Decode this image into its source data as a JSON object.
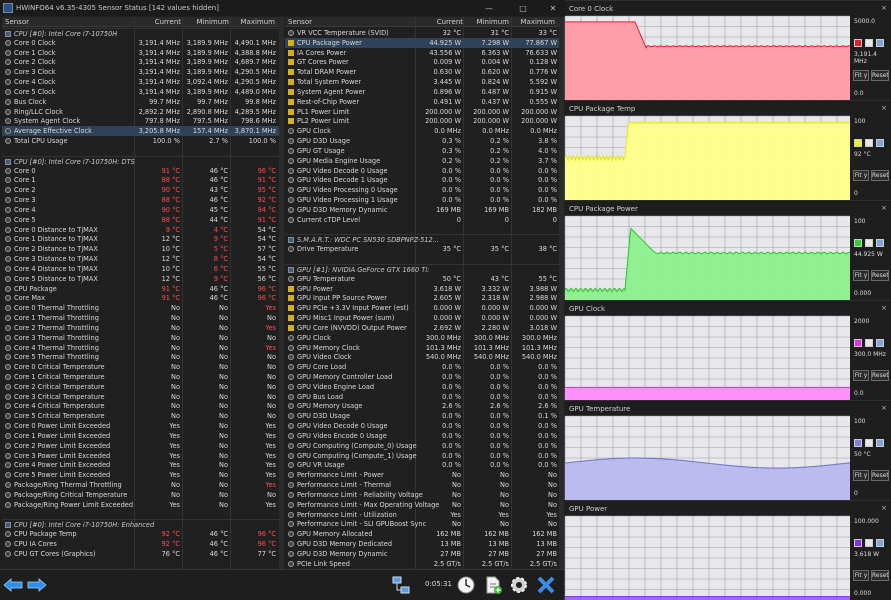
{
  "window": {
    "title": "HWiNFO64 v6.35-4305 Sensor Status [142 values hidden]"
  },
  "columns": {
    "sensor": "Sensor",
    "current": "Current",
    "minimum": "Minimum",
    "maximum": "Maximum"
  },
  "left_rows": [
    {
      "n": "CPU [#0]: Intel Core i7-10750H",
      "group": true
    },
    {
      "n": "Core 0 Clock",
      "c": "3,191.4 MHz",
      "mi": "3,189.9 MHz",
      "ma": "4,490.1 MHz"
    },
    {
      "n": "Core 1 Clock",
      "c": "3,191.4 MHz",
      "mi": "3,189.9 MHz",
      "ma": "4,388.8 MHz"
    },
    {
      "n": "Core 2 Clock",
      "c": "3,191.4 MHz",
      "mi": "3,189.9 MHz",
      "ma": "4,689.7 MHz"
    },
    {
      "n": "Core 3 Clock",
      "c": "3,191.4 MHz",
      "mi": "3,189.9 MHz",
      "ma": "4,290.5 MHz"
    },
    {
      "n": "Core 4 Clock",
      "c": "3,191.4 MHz",
      "mi": "3,092.4 MHz",
      "ma": "4,290.5 MHz"
    },
    {
      "n": "Core 5 Clock",
      "c": "3,191.4 MHz",
      "mi": "3,189.9 MHz",
      "ma": "4,489.0 MHz"
    },
    {
      "n": "Bus Clock",
      "c": "99.7 MHz",
      "mi": "99.7 MHz",
      "ma": "99.8 MHz"
    },
    {
      "n": "Ring/LLC Clock",
      "c": "2,892.2 MHz",
      "mi": "2,890.8 MHz",
      "ma": "4,289.5 MHz"
    },
    {
      "n": "System Agent Clock",
      "c": "797.8 MHz",
      "mi": "797.5 MHz",
      "ma": "798.6 MHz"
    },
    {
      "n": "Average Effective Clock",
      "c": "3,205.8 MHz",
      "mi": "157.4 MHz",
      "ma": "3,870.1 MHz",
      "sel": true
    },
    {
      "n": "Total CPU Usage",
      "c": "100.0 %",
      "mi": "2.7 %",
      "ma": "100.0 %"
    },
    {
      "n": "",
      "blank": true
    },
    {
      "n": "CPU [#0]: Intel Core i7-10750H: DTS",
      "group": true
    },
    {
      "n": "Core 0",
      "c": "91 °C",
      "mi": "46 °C",
      "ma": "96 °C",
      "rc": true,
      "rma": true
    },
    {
      "n": "Core 1",
      "c": "88 °C",
      "mi": "46 °C",
      "ma": "91 °C",
      "rc": true,
      "rma": true
    },
    {
      "n": "Core 2",
      "c": "90 °C",
      "mi": "43 °C",
      "ma": "95 °C",
      "rc": true,
      "rma": true
    },
    {
      "n": "Core 3",
      "c": "88 °C",
      "mi": "46 °C",
      "ma": "92 °C",
      "rc": true,
      "rma": true
    },
    {
      "n": "Core 4",
      "c": "90 °C",
      "mi": "45 °C",
      "ma": "94 °C",
      "rc": true,
      "rma": true
    },
    {
      "n": "Core 5",
      "c": "88 °C",
      "mi": "44 °C",
      "ma": "91 °C",
      "rc": true,
      "rma": true
    },
    {
      "n": "Core 0 Distance to TjMAX",
      "c": "9 °C",
      "mi": "4 °C",
      "ma": "54 °C",
      "rc": true,
      "rmi": true
    },
    {
      "n": "Core 1 Distance to TjMAX",
      "c": "12 °C",
      "mi": "9 °C",
      "ma": "54 °C",
      "rmi": true
    },
    {
      "n": "Core 2 Distance to TjMAX",
      "c": "10 °C",
      "mi": "5 °C",
      "ma": "57 °C",
      "rmi": true
    },
    {
      "n": "Core 3 Distance to TjMAX",
      "c": "12 °C",
      "mi": "8 °C",
      "ma": "54 °C",
      "rmi": true
    },
    {
      "n": "Core 4 Distance to TjMAX",
      "c": "10 °C",
      "mi": "6 °C",
      "ma": "55 °C",
      "rmi": true
    },
    {
      "n": "Core 5 Distance to TjMAX",
      "c": "12 °C",
      "mi": "9 °C",
      "ma": "56 °C",
      "rmi": true
    },
    {
      "n": "CPU Package",
      "c": "91 °C",
      "mi": "46 °C",
      "ma": "96 °C",
      "rc": true,
      "rma": true
    },
    {
      "n": "Core Max",
      "c": "91 °C",
      "mi": "46 °C",
      "ma": "96 °C",
      "rc": true,
      "rma": true
    },
    {
      "n": "Core 0 Thermal Throttling",
      "c": "No",
      "mi": "No",
      "ma": "Yes",
      "rma": true
    },
    {
      "n": "Core 1 Thermal Throttling",
      "c": "No",
      "mi": "No",
      "ma": "No"
    },
    {
      "n": "Core 2 Thermal Throttling",
      "c": "No",
      "mi": "No",
      "ma": "Yes",
      "rma": true
    },
    {
      "n": "Core 3 Thermal Throttling",
      "c": "No",
      "mi": "No",
      "ma": "No"
    },
    {
      "n": "Core 4 Thermal Throttling",
      "c": "No",
      "mi": "No",
      "ma": "Yes",
      "rma": true
    },
    {
      "n": "Core 5 Thermal Throttling",
      "c": "No",
      "mi": "No",
      "ma": "No"
    },
    {
      "n": "Core 0 Critical Temperature",
      "c": "No",
      "mi": "No",
      "ma": "No"
    },
    {
      "n": "Core 1 Critical Temperature",
      "c": "No",
      "mi": "No",
      "ma": "No"
    },
    {
      "n": "Core 2 Critical Temperature",
      "c": "No",
      "mi": "No",
      "ma": "No"
    },
    {
      "n": "Core 3 Critical Temperature",
      "c": "No",
      "mi": "No",
      "ma": "No"
    },
    {
      "n": "Core 4 Critical Temperature",
      "c": "No",
      "mi": "No",
      "ma": "No"
    },
    {
      "n": "Core 5 Critical Temperature",
      "c": "No",
      "mi": "No",
      "ma": "No"
    },
    {
      "n": "Core 0 Power Limit Exceeded",
      "c": "Yes",
      "mi": "No",
      "ma": "Yes"
    },
    {
      "n": "Core 1 Power Limit Exceeded",
      "c": "Yes",
      "mi": "No",
      "ma": "Yes"
    },
    {
      "n": "Core 2 Power Limit Exceeded",
      "c": "Yes",
      "mi": "No",
      "ma": "Yes"
    },
    {
      "n": "Core 3 Power Limit Exceeded",
      "c": "Yes",
      "mi": "No",
      "ma": "Yes"
    },
    {
      "n": "Core 4 Power Limit Exceeded",
      "c": "Yes",
      "mi": "No",
      "ma": "Yes"
    },
    {
      "n": "Core 5 Power Limit Exceeded",
      "c": "Yes",
      "mi": "No",
      "ma": "Yes"
    },
    {
      "n": "Package/Ring Thermal Throttling",
      "c": "No",
      "mi": "No",
      "ma": "Yes",
      "rma": true
    },
    {
      "n": "Package/Ring Critical Temperature",
      "c": "No",
      "mi": "No",
      "ma": "No"
    },
    {
      "n": "Package/Ring Power Limit Exceeded",
      "c": "Yes",
      "mi": "No",
      "ma": "Yes"
    },
    {
      "n": "",
      "blank": true
    },
    {
      "n": "CPU [#0]: Intel Core i7-10750H: Enhanced",
      "group": true
    },
    {
      "n": "CPU Package Temp",
      "c": "92 °C",
      "mi": "46 °C",
      "ma": "96 °C",
      "rc": true,
      "rma": true
    },
    {
      "n": "CPU IA Cores",
      "c": "92 °C",
      "mi": "46 °C",
      "ma": "96 °C",
      "rc": true,
      "rma": true
    },
    {
      "n": "CPU GT Cores (Graphics)",
      "c": "76 °C",
      "mi": "46 °C",
      "ma": "77 °C"
    }
  ],
  "right_rows": [
    {
      "n": "VR VCC Temperature (SVID)",
      "c": "32 °C",
      "mi": "31 °C",
      "ma": "33 °C"
    },
    {
      "n": "CPU Package Power",
      "c": "44.925 W",
      "mi": "7.298 W",
      "ma": "77.867 W",
      "sel": true,
      "pwr": true
    },
    {
      "n": "IA Cores Power",
      "c": "43.556 W",
      "mi": "6.363 W",
      "ma": "76.633 W",
      "pwr": true
    },
    {
      "n": "GT Cores Power",
      "c": "0.009 W",
      "mi": "0.004 W",
      "ma": "0.128 W",
      "pwr": true
    },
    {
      "n": "Total DRAM Power",
      "c": "0.630 W",
      "mi": "0.620 W",
      "ma": "0.776 W",
      "pwr": true
    },
    {
      "n": "Total System Power",
      "c": "3.445 W",
      "mi": "0.824 W",
      "ma": "5.592 W",
      "pwr": true
    },
    {
      "n": "System Agent Power",
      "c": "0.896 W",
      "mi": "0.487 W",
      "ma": "0.915 W",
      "pwr": true
    },
    {
      "n": "Rest-of-Chip Power",
      "c": "0.491 W",
      "mi": "0.437 W",
      "ma": "0.555 W",
      "pwr": true
    },
    {
      "n": "PL1 Power Limit",
      "c": "200.000 W",
      "mi": "200.000 W",
      "ma": "200.000 W",
      "pwr": true
    },
    {
      "n": "PL2 Power Limit",
      "c": "200.000 W",
      "mi": "200.000 W",
      "ma": "200.000 W",
      "pwr": true
    },
    {
      "n": "GPU Clock",
      "c": "0.0 MHz",
      "mi": "0.0 MHz",
      "ma": "0.0 MHz"
    },
    {
      "n": "GPU D3D Usage",
      "c": "0.3 %",
      "mi": "0.2 %",
      "ma": "3.8 %"
    },
    {
      "n": "GPU GT Usage",
      "c": "0.3 %",
      "mi": "0.2 %",
      "ma": "4.0 %"
    },
    {
      "n": "GPU Media Engine Usage",
      "c": "0.2 %",
      "mi": "0.2 %",
      "ma": "3.7 %"
    },
    {
      "n": "GPU Video Decode 0 Usage",
      "c": "0.0 %",
      "mi": "0.0 %",
      "ma": "0.0 %"
    },
    {
      "n": "GPU Video Decode 1 Usage",
      "c": "0.0 %",
      "mi": "0.0 %",
      "ma": "0.0 %"
    },
    {
      "n": "GPU Video Processing 0 Usage",
      "c": "0.0 %",
      "mi": "0.0 %",
      "ma": "0.0 %"
    },
    {
      "n": "GPU Video Processing 1 Usage",
      "c": "0.0 %",
      "mi": "0.0 %",
      "ma": "0.0 %"
    },
    {
      "n": "GPU D3D Memory Dynamic",
      "c": "169 MB",
      "mi": "169 MB",
      "ma": "182 MB"
    },
    {
      "n": "Current cTDP Level",
      "c": "0",
      "mi": "0",
      "ma": "0"
    },
    {
      "n": "",
      "blank": true
    },
    {
      "n": "S.M.A.R.T.: WDC PC SN530 SDBPNPZ-512...",
      "group": true
    },
    {
      "n": "Drive Temperature",
      "c": "35 °C",
      "mi": "35 °C",
      "ma": "38 °C"
    },
    {
      "n": "",
      "blank": true
    },
    {
      "n": "GPU [#1]: NVIDIA GeForce GTX 1660 Ti:",
      "group": true
    },
    {
      "n": "GPU Temperature",
      "c": "50 °C",
      "mi": "43 °C",
      "ma": "55 °C"
    },
    {
      "n": "GPU Power",
      "c": "3.618 W",
      "mi": "3.332 W",
      "ma": "3.988 W",
      "pwr": true
    },
    {
      "n": "GPU Input PP Source Power",
      "c": "2.605 W",
      "mi": "2.318 W",
      "ma": "2.988 W",
      "pwr": true
    },
    {
      "n": "GPU PCIe +3.3V Input Power (est)",
      "c": "0.000 W",
      "mi": "0.000 W",
      "ma": "0.000 W",
      "pwr": true
    },
    {
      "n": "GPU Misc1 Input Power (sum)",
      "c": "0.000 W",
      "mi": "0.000 W",
      "ma": "0.000 W",
      "pwr": true
    },
    {
      "n": "GPU Core (NVVDD) Output Power",
      "c": "2.692 W",
      "mi": "2.280 W",
      "ma": "3.018 W",
      "pwr": true
    },
    {
      "n": "GPU Clock",
      "c": "300.0 MHz",
      "mi": "300.0 MHz",
      "ma": "300.0 MHz"
    },
    {
      "n": "GPU Memory Clock",
      "c": "101.3 MHz",
      "mi": "101.3 MHz",
      "ma": "101.3 MHz"
    },
    {
      "n": "GPU Video Clock",
      "c": "540.0 MHz",
      "mi": "540.0 MHz",
      "ma": "540.0 MHz"
    },
    {
      "n": "GPU Core Load",
      "c": "0.0 %",
      "mi": "0.0 %",
      "ma": "0.0 %"
    },
    {
      "n": "GPU Memory Controller Load",
      "c": "0.0 %",
      "mi": "0.0 %",
      "ma": "0.0 %"
    },
    {
      "n": "GPU Video Engine Load",
      "c": "0.0 %",
      "mi": "0.0 %",
      "ma": "0.0 %"
    },
    {
      "n": "GPU Bus Load",
      "c": "0.0 %",
      "mi": "0.0 %",
      "ma": "0.0 %"
    },
    {
      "n": "GPU Memory Usage",
      "c": "2.6 %",
      "mi": "2.6 %",
      "ma": "2.6 %"
    },
    {
      "n": "GPU D3D Usage",
      "c": "0.0 %",
      "mi": "0.0 %",
      "ma": "0.1 %"
    },
    {
      "n": "GPU Video Decode 0 Usage",
      "c": "0.0 %",
      "mi": "0.0 %",
      "ma": "0.0 %"
    },
    {
      "n": "GPU Video Encode 0 Usage",
      "c": "0.0 %",
      "mi": "0.0 %",
      "ma": "0.0 %"
    },
    {
      "n": "GPU Computing (Compute_0) Usage",
      "c": "0.0 %",
      "mi": "0.0 %",
      "ma": "0.0 %"
    },
    {
      "n": "GPU Computing (Compute_1) Usage",
      "c": "0.0 %",
      "mi": "0.0 %",
      "ma": "0.0 %"
    },
    {
      "n": "GPU VR Usage",
      "c": "0.0 %",
      "mi": "0.0 %",
      "ma": "0.0 %"
    },
    {
      "n": "Performance Limit - Power",
      "c": "No",
      "mi": "No",
      "ma": "No"
    },
    {
      "n": "Performance Limit - Thermal",
      "c": "No",
      "mi": "No",
      "ma": "No"
    },
    {
      "n": "Performance Limit - Reliability Voltage",
      "c": "No",
      "mi": "No",
      "ma": "No"
    },
    {
      "n": "Performance Limit - Max Operating Voltage",
      "c": "No",
      "mi": "No",
      "ma": "No"
    },
    {
      "n": "Performance Limit - Utilization",
      "c": "Yes",
      "mi": "Yes",
      "ma": "Yes"
    },
    {
      "n": "Performance Limit - SLI GPUBoost Sync",
      "c": "No",
      "mi": "No",
      "ma": "No"
    },
    {
      "n": "GPU Memory Allocated",
      "c": "162 MB",
      "mi": "162 MB",
      "ma": "162 MB"
    },
    {
      "n": "GPU D3D Memory Dedicated",
      "c": "13 MB",
      "mi": "13 MB",
      "ma": "13 MB"
    },
    {
      "n": "GPU D3D Memory Dynamic",
      "c": "27 MB",
      "mi": "27 MB",
      "ma": "27 MB"
    },
    {
      "n": "PCIe Link Speed",
      "c": "2.5 GT/s",
      "mi": "2.5 GT/s",
      "ma": "2.5 GT/s"
    }
  ],
  "statusbar": {
    "timer": "0:05:31"
  },
  "graphs": [
    {
      "title": "Core 0 Clock",
      "max": "5000.0",
      "current": "3,191.4 MHz",
      "min": "0.0",
      "color": "#ff9aa5",
      "line": "#e0202c",
      "swatch": "#e0202c"
    },
    {
      "title": "CPU Package Temp",
      "max": "100",
      "current": "92 °C",
      "min": "0",
      "color": "#ffff8a",
      "line": "#e8e81a",
      "swatch": "#f0f020"
    },
    {
      "title": "CPU Package Power",
      "max": "100",
      "current": "44.925 W",
      "min": "0.000",
      "color": "#8cf08c",
      "line": "#2ac52a",
      "swatch": "#2fd02f"
    },
    {
      "title": "GPU Clock",
      "max": "2000",
      "current": "300.0 MHz",
      "min": "0.0",
      "color": "#ff8cff",
      "line": "#d82ad8",
      "swatch": "#e030e0"
    },
    {
      "title": "GPU Temperature",
      "max": "100",
      "current": "50 °C",
      "min": "0",
      "color": "#b8b8f0",
      "line": "#7070c8",
      "swatch": "#8080d8"
    },
    {
      "title": "GPU Power",
      "max": "100.000",
      "current": "3.618 W",
      "min": "0.000",
      "color": "#a060ff",
      "line": "#7a2ae8",
      "swatch": "#8a2ae8"
    }
  ],
  "graph_buttons": {
    "fit": "Fit y",
    "reset": "Reset"
  }
}
